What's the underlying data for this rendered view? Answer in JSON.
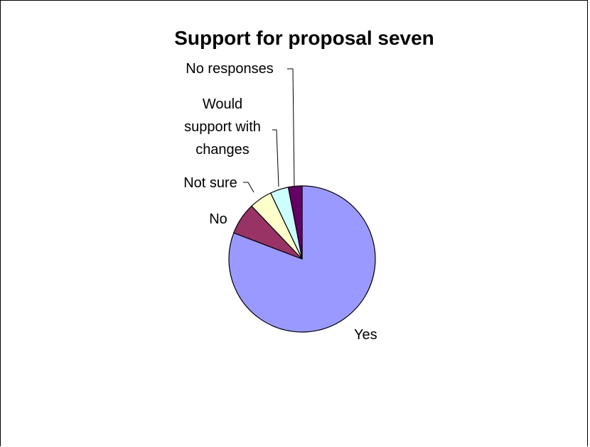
{
  "chart_data": {
    "type": "pie",
    "title": "Support for proposal seven",
    "categories": [
      "Yes",
      "No",
      "Not sure",
      "Would support with changes",
      "No responses"
    ],
    "values": [
      80,
      7,
      5,
      4,
      3
    ],
    "label_lines": [
      [
        "Yes"
      ],
      [
        "No"
      ],
      [
        "Not sure"
      ],
      [
        "Would",
        "support with",
        "changes"
      ],
      [
        "No responses"
      ]
    ],
    "colors": [
      "#9999ff",
      "#993366",
      "#ffffcc",
      "#ccffff",
      "#660066"
    ],
    "start_angle_deg": 0,
    "direction": "clockwise",
    "legend": "none"
  }
}
